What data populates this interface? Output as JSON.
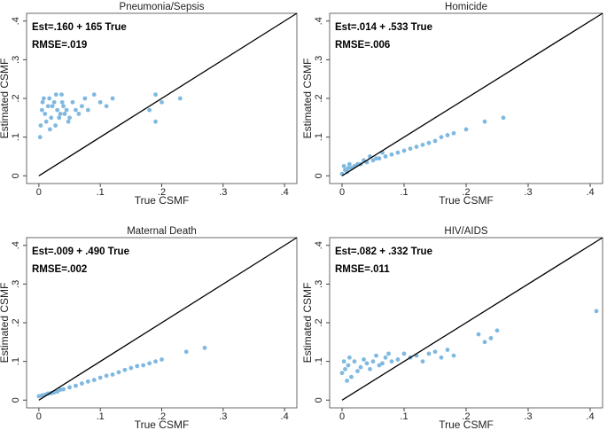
{
  "chart_data": [
    {
      "type": "scatter",
      "title": "Pneumonia/Sepsis",
      "xlabel": "True CSMF",
      "ylabel": "Estimated CSMF",
      "annotations": [
        "Est=.160 + 165 True",
        "RMSE=.019"
      ],
      "color": "#7fb8e0",
      "xlim": [
        -0.02,
        0.42
      ],
      "ylim": [
        -0.02,
        0.42
      ],
      "xticks": [
        0,
        {
          "value": 0.1,
          "label": ".1"
        },
        {
          "value": 0.2,
          "label": ".2"
        },
        {
          "value": 0.3,
          "label": ".3"
        },
        {
          "value": 0.4,
          "label": ".4"
        }
      ],
      "yticks": [
        0,
        {
          "value": 0.1,
          "label": ".1"
        },
        {
          "value": 0.2,
          "label": ".2"
        },
        {
          "value": 0.3,
          "label": ".3"
        },
        {
          "value": 0.4,
          "label": ".4"
        }
      ],
      "x": [
        0.005,
        0.01,
        0.015,
        0.02,
        0.025,
        0.03,
        0.035,
        0.04,
        0.045,
        0.05,
        0.055,
        0.06,
        0.065,
        0.07,
        0.075,
        0.08,
        0.09,
        0.1,
        0.11,
        0.12,
        0.003,
        0.008,
        0.012,
        0.018,
        0.022,
        0.028,
        0.033,
        0.038,
        0.042,
        0.048,
        0.002,
        0.006,
        0.017,
        0.027,
        0.037,
        0.19,
        0.2,
        0.18,
        0.23,
        0.19
      ],
      "y": [
        0.17,
        0.16,
        0.18,
        0.15,
        0.19,
        0.17,
        0.16,
        0.18,
        0.17,
        0.15,
        0.19,
        0.17,
        0.16,
        0.18,
        0.2,
        0.17,
        0.21,
        0.19,
        0.18,
        0.2,
        0.13,
        0.2,
        0.14,
        0.12,
        0.18,
        0.21,
        0.15,
        0.19,
        0.16,
        0.14,
        0.1,
        0.19,
        0.2,
        0.13,
        0.21,
        0.21,
        0.19,
        0.17,
        0.2,
        0.14
      ]
    },
    {
      "type": "scatter",
      "title": "Homicide",
      "xlabel": "True CSMF",
      "ylabel": "Estimated CSMF",
      "annotations": [
        "Est=.014 + .533 True",
        "RMSE=.006"
      ],
      "color": "#7fb8e0",
      "xlim": [
        -0.02,
        0.42
      ],
      "ylim": [
        -0.02,
        0.42
      ],
      "xticks": [
        0,
        {
          "value": 0.1,
          "label": ".1"
        },
        {
          "value": 0.2,
          "label": ".2"
        },
        {
          "value": 0.3,
          "label": ".3"
        },
        {
          "value": 0.4,
          "label": ".4"
        }
      ],
      "yticks": [
        0,
        {
          "value": 0.1,
          "label": ".1"
        },
        {
          "value": 0.2,
          "label": ".2"
        },
        {
          "value": 0.3,
          "label": ".3"
        },
        {
          "value": 0.4,
          "label": ".4"
        }
      ],
      "x": [
        0,
        0.005,
        0.01,
        0.015,
        0.02,
        0.025,
        0.03,
        0.04,
        0.05,
        0.06,
        0.07,
        0.08,
        0.09,
        0.1,
        0.11,
        0.12,
        0.13,
        0.14,
        0.15,
        0.16,
        0.17,
        0.18,
        0.2,
        0.23,
        0.26,
        0.003,
        0.008,
        0.012,
        0.035,
        0.045,
        0.055,
        0.065
      ],
      "y": [
        0.005,
        0.015,
        0.02,
        0.02,
        0.025,
        0.03,
        0.03,
        0.035,
        0.04,
        0.045,
        0.05,
        0.055,
        0.06,
        0.065,
        0.07,
        0.075,
        0.08,
        0.085,
        0.09,
        0.1,
        0.105,
        0.11,
        0.12,
        0.14,
        0.15,
        0.025,
        0.01,
        0.03,
        0.04,
        0.05,
        0.045,
        0.06
      ]
    },
    {
      "type": "scatter",
      "title": "Maternal Death",
      "xlabel": "True CSMF",
      "ylabel": "Estimated CSMF",
      "annotations": [
        "Est=.009 + .490 True",
        "RMSE=.002"
      ],
      "color": "#7fb8e0",
      "xlim": [
        -0.02,
        0.42
      ],
      "ylim": [
        -0.02,
        0.42
      ],
      "xticks": [
        0,
        {
          "value": 0.1,
          "label": ".1"
        },
        {
          "value": 0.2,
          "label": ".2"
        },
        {
          "value": 0.3,
          "label": ".3"
        },
        {
          "value": 0.4,
          "label": ".4"
        }
      ],
      "yticks": [
        0,
        {
          "value": 0.1,
          "label": ".1"
        },
        {
          "value": 0.2,
          "label": ".2"
        },
        {
          "value": 0.3,
          "label": ".3"
        },
        {
          "value": 0.4,
          "label": ".4"
        }
      ],
      "x": [
        0,
        0.005,
        0.01,
        0.02,
        0.03,
        0.04,
        0.05,
        0.06,
        0.07,
        0.08,
        0.09,
        0.1,
        0.11,
        0.12,
        0.13,
        0.14,
        0.15,
        0.16,
        0.17,
        0.18,
        0.19,
        0.2,
        0.24,
        0.27,
        0.015,
        0.025,
        0.035
      ],
      "y": [
        0.01,
        0.012,
        0.014,
        0.018,
        0.022,
        0.028,
        0.033,
        0.037,
        0.043,
        0.048,
        0.052,
        0.058,
        0.063,
        0.066,
        0.072,
        0.078,
        0.083,
        0.088,
        0.09,
        0.095,
        0.1,
        0.105,
        0.125,
        0.135,
        0.017,
        0.02,
        0.027
      ]
    },
    {
      "type": "scatter",
      "title": "HIV/AIDS",
      "xlabel": "True CSMF",
      "ylabel": "Estimated CSMF",
      "annotations": [
        "Est=.082 + .332 True",
        "RMSE=.011"
      ],
      "color": "#7fb8e0",
      "xlim": [
        -0.02,
        0.42
      ],
      "ylim": [
        -0.02,
        0.42
      ],
      "xticks": [
        0,
        {
          "value": 0.1,
          "label": ".1"
        },
        {
          "value": 0.2,
          "label": ".2"
        },
        {
          "value": 0.3,
          "label": ".3"
        },
        {
          "value": 0.4,
          "label": ".4"
        }
      ],
      "yticks": [
        0,
        {
          "value": 0.1,
          "label": ".1"
        },
        {
          "value": 0.2,
          "label": ".2"
        },
        {
          "value": 0.3,
          "label": ".3"
        },
        {
          "value": 0.4,
          "label": ".4"
        }
      ],
      "x": [
        0,
        0.005,
        0.01,
        0.015,
        0.02,
        0.03,
        0.04,
        0.05,
        0.06,
        0.07,
        0.08,
        0.09,
        0.1,
        0.11,
        0.12,
        0.13,
        0.14,
        0.15,
        0.16,
        0.17,
        0.18,
        0.003,
        0.008,
        0.012,
        0.025,
        0.035,
        0.045,
        0.055,
        0.065,
        0.075,
        0.22,
        0.23,
        0.24,
        0.25,
        0.41
      ],
      "y": [
        0.07,
        0.08,
        0.09,
        0.06,
        0.1,
        0.085,
        0.095,
        0.1,
        0.09,
        0.11,
        0.1,
        0.105,
        0.12,
        0.11,
        0.115,
        0.1,
        0.12,
        0.125,
        0.11,
        0.13,
        0.115,
        0.1,
        0.05,
        0.11,
        0.075,
        0.105,
        0.08,
        0.115,
        0.095,
        0.12,
        0.17,
        0.15,
        0.16,
        0.18,
        0.23
      ]
    }
  ]
}
